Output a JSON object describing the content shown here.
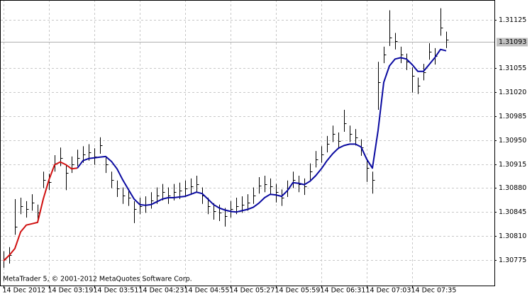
{
  "chart_data": {
    "type": "ohlc",
    "watermark": "MetaTrader 5, © 2001-2012 MetaQuotes Software Corp.",
    "bars": {
      "color": "#000000",
      "high": [
        1.30788,
        1.30794,
        1.30864,
        1.30866,
        1.30861,
        1.30871,
        1.30856,
        1.30904,
        1.30901,
        1.30928,
        1.30939,
        1.30914,
        1.30926,
        1.30936,
        1.30941,
        1.30944,
        1.30938,
        1.30954,
        1.30926,
        1.30904,
        1.30891,
        1.30881,
        1.30878,
        1.30861,
        1.30866,
        1.30868,
        1.30874,
        1.30881,
        1.30886,
        1.30881,
        1.30886,
        1.30888,
        1.30891,
        1.30894,
        1.30898,
        1.30881,
        1.30866,
        1.30858,
        1.30856,
        1.30851,
        1.30861,
        1.30866,
        1.30868,
        1.30871,
        1.30881,
        1.30896,
        1.30898,
        1.30894,
        1.30886,
        1.30878,
        1.30891,
        1.30904,
        1.30898,
        1.30894,
        1.30916,
        1.30934,
        1.30941,
        1.30956,
        1.30971,
        1.30961,
        1.30994,
        1.30971,
        1.30966,
        1.30951,
        1.30921,
        1.30904,
        1.31064,
        1.31086,
        1.31139,
        1.31106,
        1.31086,
        1.31076,
        1.31056,
        1.31041,
        1.31061,
        1.31091,
        1.31084,
        1.31142,
        1.31108
      ],
      "low": [
        1.30764,
        1.3077,
        1.30812,
        1.30842,
        1.30837,
        1.30847,
        1.30832,
        1.3088,
        1.30877,
        1.30904,
        1.30912,
        1.30877,
        1.30902,
        1.30912,
        1.30917,
        1.3092,
        1.30914,
        1.3093,
        1.30902,
        1.3088,
        1.30867,
        1.30857,
        1.30854,
        1.30829,
        1.30842,
        1.30844,
        1.3085,
        1.30857,
        1.30862,
        1.30857,
        1.30862,
        1.30864,
        1.30867,
        1.3087,
        1.30874,
        1.30857,
        1.30842,
        1.30834,
        1.30832,
        1.30824,
        1.30837,
        1.30842,
        1.30844,
        1.30847,
        1.30857,
        1.30872,
        1.30874,
        1.3087,
        1.30859,
        1.30854,
        1.30867,
        1.3088,
        1.30874,
        1.3087,
        1.30892,
        1.3091,
        1.30917,
        1.30932,
        1.30947,
        1.30937,
        1.30962,
        1.30947,
        1.30942,
        1.30927,
        1.30889,
        1.30872,
        1.30994,
        1.31062,
        1.31087,
        1.31082,
        1.31062,
        1.31052,
        1.31019,
        1.31017,
        1.31037,
        1.31067,
        1.3106,
        1.31102,
        1.31084
      ],
      "close": [
        1.30776,
        1.30782,
        1.30824,
        1.30854,
        1.30849,
        1.30859,
        1.30844,
        1.30892,
        1.30889,
        1.30916,
        1.30924,
        1.30902,
        1.30914,
        1.30924,
        1.30929,
        1.30932,
        1.30926,
        1.30942,
        1.30914,
        1.30892,
        1.30879,
        1.30869,
        1.30866,
        1.30849,
        1.30854,
        1.30856,
        1.30862,
        1.30869,
        1.30874,
        1.30869,
        1.30874,
        1.30876,
        1.30879,
        1.30882,
        1.30886,
        1.30869,
        1.30854,
        1.30846,
        1.30844,
        1.30839,
        1.30849,
        1.30854,
        1.30856,
        1.30859,
        1.30869,
        1.30884,
        1.30886,
        1.30882,
        1.30874,
        1.30866,
        1.30879,
        1.30892,
        1.30886,
        1.30882,
        1.30904,
        1.30922,
        1.30929,
        1.30944,
        1.30959,
        1.30949,
        1.30974,
        1.30959,
        1.30954,
        1.30939,
        1.30909,
        1.30892,
        1.31034,
        1.31074,
        1.31099,
        1.31094,
        1.31074,
        1.31064,
        1.31044,
        1.31029,
        1.31049,
        1.31079,
        1.31072,
        1.31114,
        1.31096
      ]
    },
    "lines": [
      {
        "color": "#d01010",
        "values": [
          1.30774,
          1.30782,
          1.30792,
          1.30816,
          1.30826,
          1.30828,
          1.3083,
          1.30864,
          1.30892,
          1.30914,
          1.30918,
          1.30914,
          1.30908,
          1.30909,
          null,
          null,
          null,
          null,
          null,
          null,
          null,
          null,
          null,
          null,
          null,
          null,
          null,
          null,
          null,
          null,
          null,
          null,
          null,
          null,
          null,
          null,
          null,
          null,
          null,
          null,
          null,
          null,
          null,
          null,
          null,
          null,
          null,
          null,
          null,
          null,
          null,
          null,
          null,
          null,
          null,
          null,
          null,
          null,
          null,
          null,
          null,
          null,
          null,
          null,
          null,
          null,
          null,
          null,
          null,
          null,
          null,
          null,
          null,
          null,
          null,
          null,
          null,
          null,
          null
        ]
      },
      {
        "color": "#0a0aa0",
        "values": [
          null,
          null,
          null,
          null,
          null,
          null,
          null,
          null,
          null,
          null,
          null,
          null,
          null,
          1.30909,
          1.3092,
          1.30923,
          1.30924,
          1.30925,
          1.30926,
          1.30919,
          1.30908,
          1.30892,
          1.30878,
          1.30864,
          1.30856,
          1.30855,
          1.30856,
          1.3086,
          1.30864,
          1.30866,
          1.30866,
          1.30867,
          1.30868,
          1.30871,
          1.30874,
          1.30872,
          1.30864,
          1.30856,
          1.30851,
          1.30848,
          1.30846,
          1.30845,
          1.30847,
          1.30849,
          1.30852,
          1.30858,
          1.30866,
          1.30871,
          1.3087,
          1.30868,
          1.30876,
          1.30888,
          1.30887,
          1.30885,
          1.3089,
          1.30898,
          1.30908,
          1.3092,
          1.3093,
          1.30938,
          1.30942,
          1.30944,
          1.30944,
          1.3094,
          1.30922,
          1.30909,
          1.30964,
          1.31034,
          1.31058,
          1.31068,
          1.3107,
          1.31068,
          1.3106,
          1.3105,
          1.3105,
          1.3106,
          1.3107,
          1.31082,
          1.3108
        ]
      }
    ],
    "last_price": 1.31093,
    "xlim": [
      -0.5,
      86.5
    ],
    "xticks": [
      {
        "value": 0,
        "label": "14 Dec 2012"
      },
      {
        "value": 8,
        "label": "14 Dec 03:19"
      },
      {
        "value": 16,
        "label": "14 Dec 03:51"
      },
      {
        "value": 24,
        "label": "14 Dec 04:23"
      },
      {
        "value": 32,
        "label": "14 Dec 04:55"
      },
      {
        "value": 40,
        "label": "14 Dec 05:27"
      },
      {
        "value": 48,
        "label": "14 Dec 05:59"
      },
      {
        "value": 56,
        "label": "14 Dec 06:31"
      },
      {
        "value": 64,
        "label": "14 Dec 07:03"
      },
      {
        "value": 72,
        "label": "14 Dec 07:35"
      }
    ],
    "ylim": [
      1.30738,
      1.31154
    ],
    "yticks": [
      1.31125,
      1.31055,
      {
        "value": 1.3102,
        "label": "1.31020"
      },
      1.30985,
      {
        "value": 1.3095,
        "label": "1.30950"
      },
      1.30915,
      {
        "value": 1.3088,
        "label": "1.30880"
      },
      1.30845,
      {
        "value": 1.3081,
        "label": "1.30810"
      },
      1.30775
    ],
    "grid": true
  }
}
